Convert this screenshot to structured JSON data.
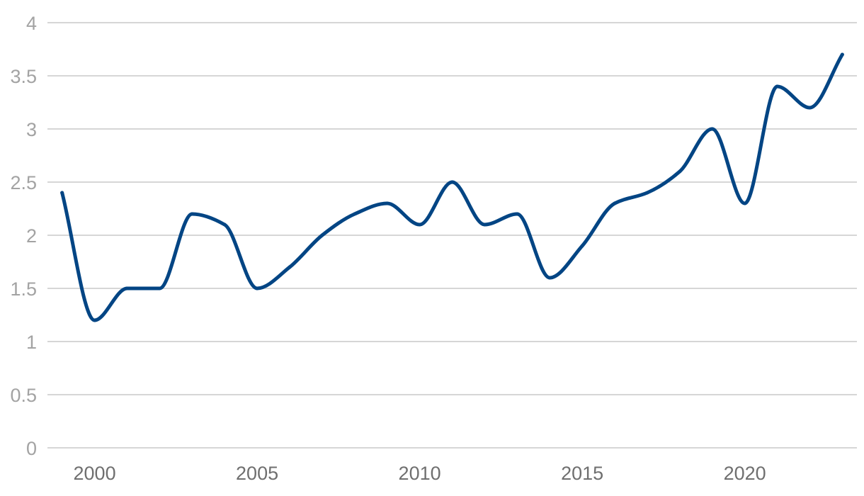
{
  "chart_data": {
    "type": "line",
    "title": "",
    "xlabel": "",
    "ylabel": "",
    "x": [
      1999,
      2000,
      2001,
      2002,
      2003,
      2004,
      2005,
      2006,
      2007,
      2008,
      2009,
      2010,
      2011,
      2012,
      2013,
      2014,
      2015,
      2016,
      2017,
      2018,
      2019,
      2020,
      2021,
      2022,
      2023
    ],
    "series": [
      {
        "values": [
          2.4,
          1.2,
          1.5,
          1.5,
          2.2,
          2.1,
          1.5,
          1.7,
          2.0,
          2.2,
          2.3,
          2.1,
          2.5,
          2.1,
          2.2,
          1.6,
          1.9,
          2.3,
          2.4,
          2.6,
          3.0,
          2.3,
          3.4,
          3.2,
          3.7
        ],
        "color": "#034584"
      }
    ],
    "xlim": [
      1998.55,
      2023.45
    ],
    "ylim": [
      0,
      4
    ],
    "y_ticks": [
      0,
      0.5,
      1,
      1.5,
      2,
      2.5,
      3,
      3.5,
      4
    ],
    "y_tick_labels": [
      "0",
      "0.5",
      "1",
      "1.5",
      "2",
      "2.5",
      "3",
      "3.5",
      "4"
    ],
    "x_ticks": [
      2000,
      2005,
      2010,
      2015,
      2020
    ],
    "x_tick_labels": [
      "2000",
      "2005",
      "2010",
      "2015",
      "2020"
    ],
    "grid": true,
    "legend": "none",
    "smoothed": true
  }
}
